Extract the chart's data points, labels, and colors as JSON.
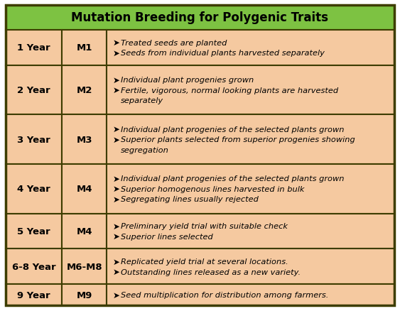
{
  "title": "Mutation Breeding for Polygenic Traits",
  "title_bg": "#7DC242",
  "title_color": "#000000",
  "row_bg": "#F5C9A0",
  "border_color": "#3D3D00",
  "text_color": "#000000",
  "rows": [
    {
      "year": "1 Year",
      "gen": "M1",
      "points": [
        "Treated seeds are planted",
        "Seeds from individual plants harvested separately"
      ],
      "n_lines": 2
    },
    {
      "year": "2 Year",
      "gen": "M2",
      "points": [
        "Individual plant progenies grown",
        "Fertile, vigorous, normal looking plants are harvested\n    separately"
      ],
      "n_lines": 3
    },
    {
      "year": "3 Year",
      "gen": "M3",
      "points": [
        "Individual plant progenies of the selected plants grown",
        "Superior plants selected from superior progenies showing\n    segregation"
      ],
      "n_lines": 3
    },
    {
      "year": "4 Year",
      "gen": "M4",
      "points": [
        "Individual plant progenies of the selected plants grown",
        "Superior homogenous lines harvested in bulk",
        "Segregating lines usually rejected"
      ],
      "n_lines": 3
    },
    {
      "year": "5 Year",
      "gen": "M4",
      "points": [
        "Preliminary yield trial with suitable check",
        "Superior lines selected"
      ],
      "n_lines": 2
    },
    {
      "year": "6-8 Year",
      "gen": "M6-M8",
      "points": [
        "Replicated yield trial at several locations.",
        "Outstanding lines released as a new variety."
      ],
      "n_lines": 2
    },
    {
      "year": "9 Year",
      "gen": "M9",
      "points": [
        "Seed multiplication for distribution among farmers."
      ],
      "n_lines": 1
    }
  ],
  "figw": 5.63,
  "figh": 4.39,
  "dpi": 100
}
